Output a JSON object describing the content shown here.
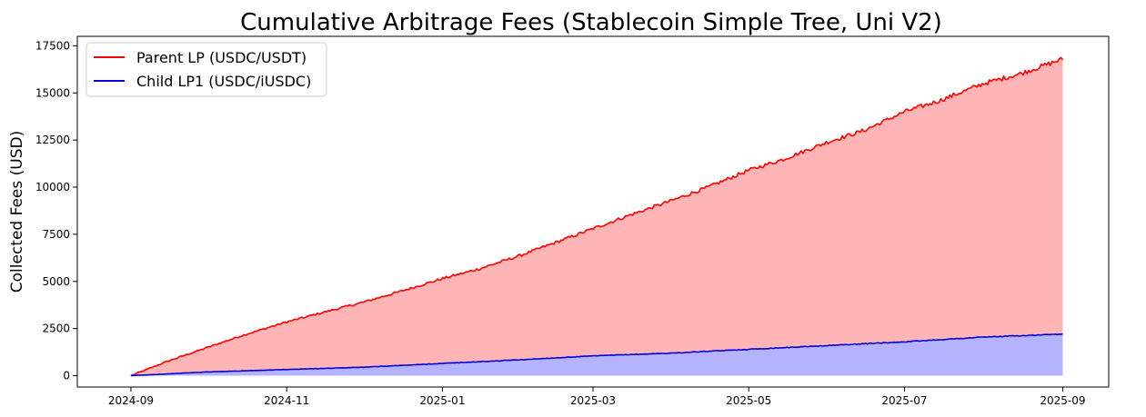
{
  "chart_data": {
    "type": "area",
    "title": "Cumulative Arbitrage Fees (Stablecoin Simple Tree, Uni V2)",
    "xlabel": "",
    "ylabel": "Collected Fees (USD)",
    "x_range": [
      "2024-09-01",
      "2025-09-01"
    ],
    "xlim": [
      "2024-08-11",
      "2025-09-19"
    ],
    "ylim": [
      -600,
      18000
    ],
    "x_ticks": [
      "2024-09",
      "2024-11",
      "2025-01",
      "2025-03",
      "2025-05",
      "2025-07",
      "2025-09"
    ],
    "y_ticks": [
      0,
      2500,
      5000,
      7500,
      10000,
      12500,
      15000,
      17500
    ],
    "grid": false,
    "legend": "top-left",
    "series": [
      {
        "name": "Parent LP (USDC/USDT)",
        "color": "#ff0000",
        "fill_color": "#ffb3b3",
        "x": [
          "2024-09-01",
          "2024-09-15",
          "2024-10-01",
          "2024-10-15",
          "2024-11-01",
          "2024-11-15",
          "2024-12-01",
          "2024-12-15",
          "2025-01-01",
          "2025-01-15",
          "2025-02-01",
          "2025-02-15",
          "2025-03-01",
          "2025-03-15",
          "2025-04-01",
          "2025-04-15",
          "2025-05-01",
          "2025-05-15",
          "2025-06-01",
          "2025-06-15",
          "2025-07-01",
          "2025-07-15",
          "2025-08-01",
          "2025-08-15",
          "2025-09-01"
        ],
        "values": [
          0,
          750,
          1500,
          2150,
          2850,
          3350,
          3900,
          4450,
          5150,
          5650,
          6400,
          7100,
          7800,
          8500,
          9300,
          10000,
          10900,
          11500,
          12400,
          13000,
          14000,
          14600,
          15500,
          16000,
          16800
        ]
      },
      {
        "name": "Child LP1 (USDC/iUSDC)",
        "color": "#0000dd",
        "fill_color": "#b3b3ff",
        "x": [
          "2024-09-01",
          "2024-10-01",
          "2024-11-01",
          "2024-12-01",
          "2025-01-01",
          "2025-02-01",
          "2025-03-01",
          "2025-04-01",
          "2025-05-01",
          "2025-06-01",
          "2025-07-01",
          "2025-08-01",
          "2025-09-01"
        ],
        "values": [
          0,
          200,
          330,
          450,
          650,
          850,
          1050,
          1200,
          1400,
          1600,
          1800,
          2050,
          2200
        ]
      }
    ]
  }
}
